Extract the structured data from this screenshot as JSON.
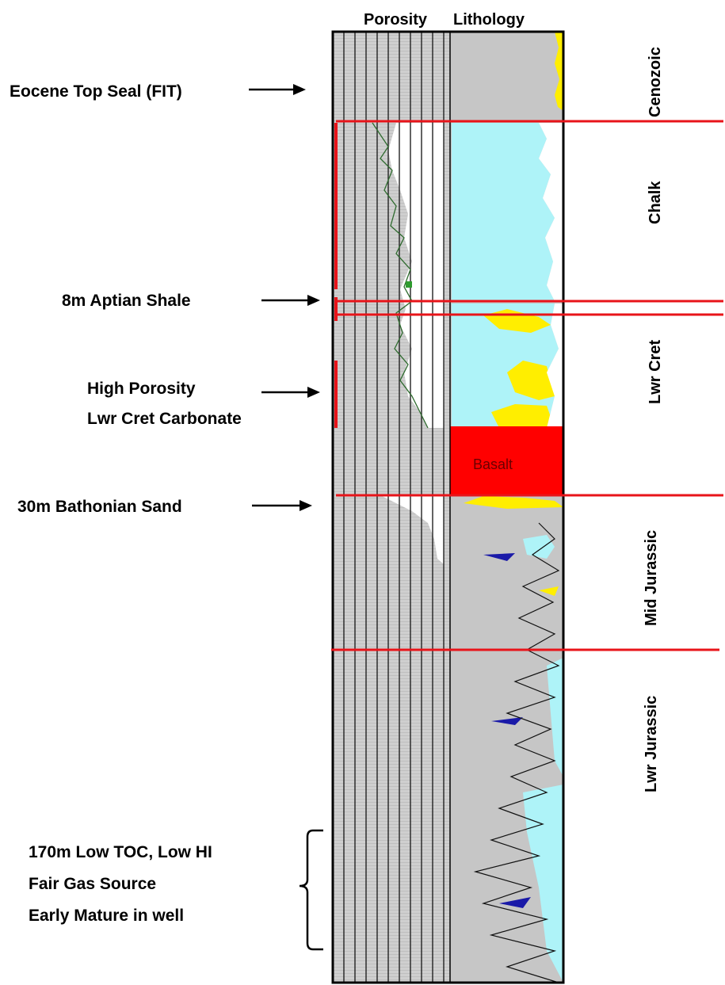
{
  "headers": {
    "porosity": "Porosity",
    "lithology": "Lithology"
  },
  "annotations": {
    "eocene_seal": "Eocene Top Seal (FIT)",
    "aptian_shale": "8m Aptian Shale",
    "high_porosity_1": "High Porosity",
    "high_porosity_2": "Lwr Cret Carbonate",
    "bathonian_sand": "30m Bathonian Sand",
    "source_1": "170m Low TOC, Low HI",
    "source_2": "Fair Gas Source",
    "source_3": "Early Mature in well"
  },
  "intervals": {
    "cenozoic": "Cenozoic",
    "chalk": "Chalk",
    "lwr_cret": "Lwr Cret",
    "mid_jurassic": "Mid Jurassic",
    "lwr_jurassic": "Lwr Jurassic"
  },
  "basalt_label": "Basalt",
  "colors": {
    "shale_grey": "#c8c8c8",
    "carbonate_cyan": "#aef3f8",
    "sand_yellow": "#ffee00",
    "basalt_red": "#ff0000",
    "horizon_red": "#e8141a",
    "porosity_green": "#1f7a1f",
    "dark_blue": "#1a1aa8"
  }
}
